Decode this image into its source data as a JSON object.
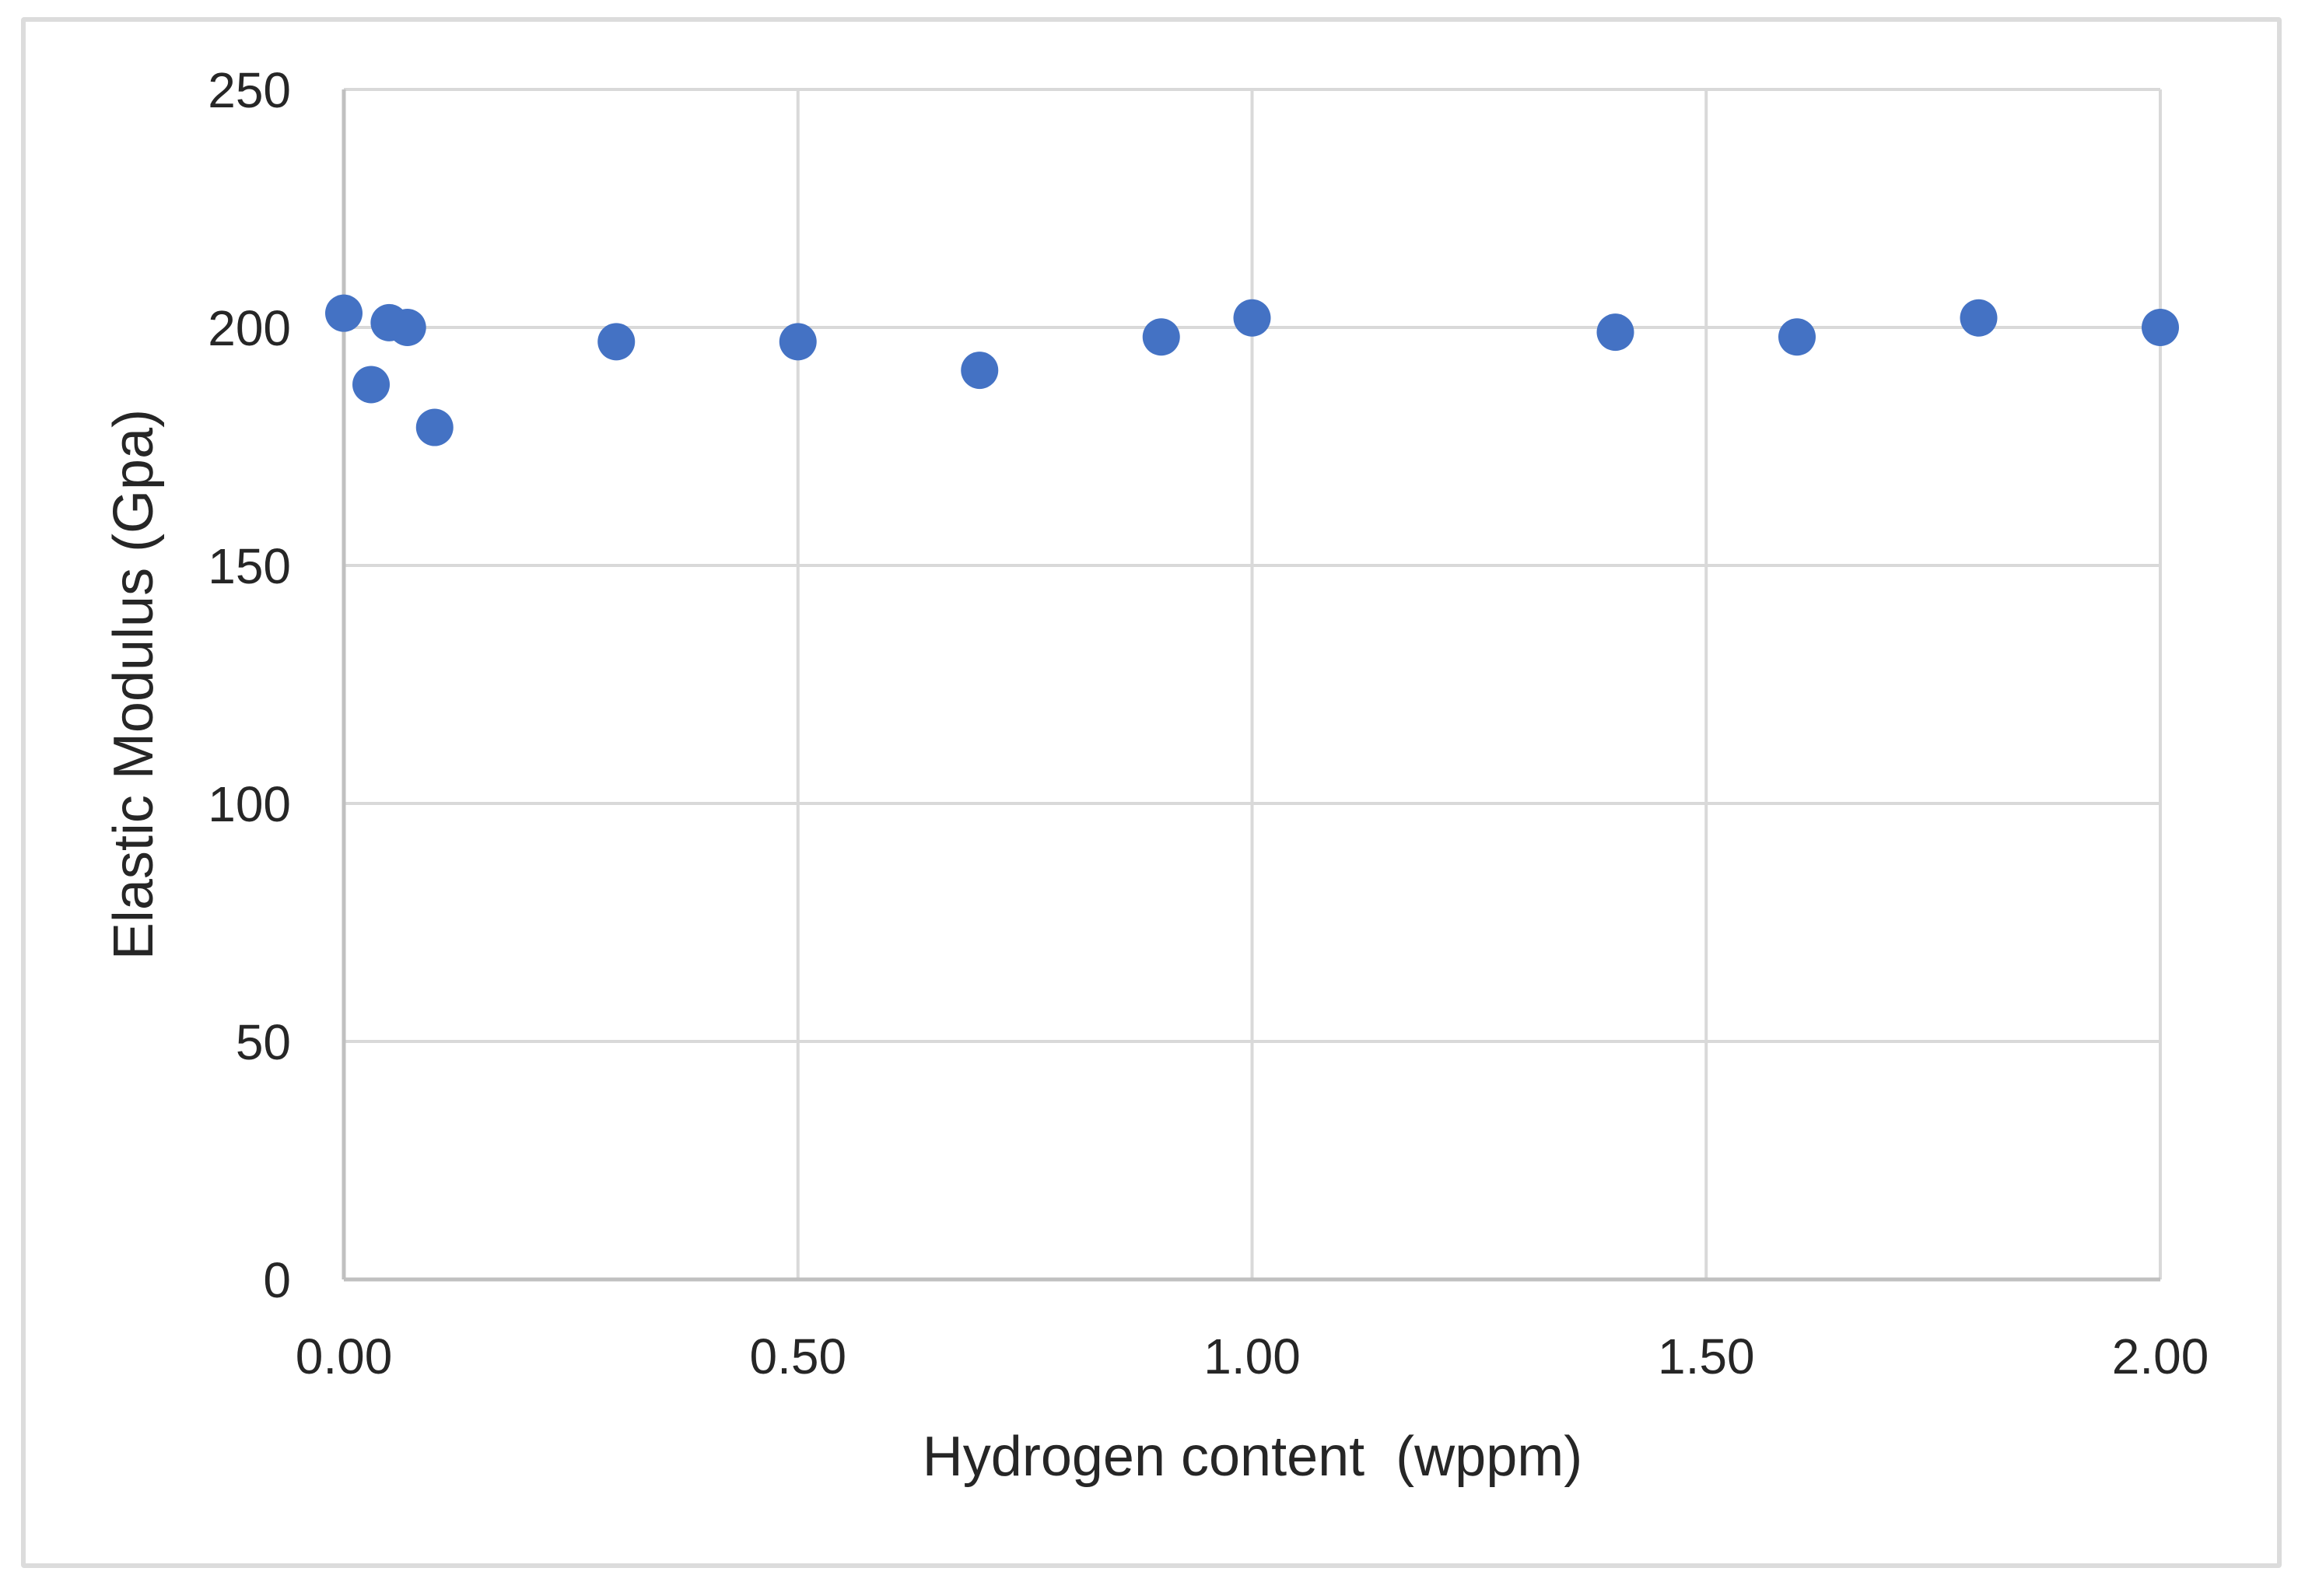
{
  "chart_data": {
    "type": "scatter",
    "xlabel": "Hydrogen content  (wppm)",
    "ylabel": "Elastic Modulus (Gpa)",
    "xlim": [
      0,
      2
    ],
    "ylim": [
      0,
      250
    ],
    "x_ticks": [
      0,
      0.5,
      1,
      1.5,
      2
    ],
    "x_tick_labels": [
      "0.00",
      "0.50",
      "1.00",
      "1.50",
      "2.00"
    ],
    "y_ticks": [
      0,
      50,
      100,
      150,
      200,
      250
    ],
    "y_tick_labels": [
      "0",
      "50",
      "100",
      "150",
      "200",
      "250"
    ],
    "grid": true,
    "legend": "none",
    "marker_color": "#4472c4",
    "gridline_color": "#d9d9d9",
    "axis_line_color": "#c0c0c0",
    "text_color": "#262626",
    "points": [
      {
        "x": 0.0,
        "y": 203
      },
      {
        "x": 0.03,
        "y": 188
      },
      {
        "x": 0.05,
        "y": 201
      },
      {
        "x": 0.07,
        "y": 200
      },
      {
        "x": 0.1,
        "y": 179
      },
      {
        "x": 0.3,
        "y": 197
      },
      {
        "x": 0.5,
        "y": 197
      },
      {
        "x": 0.7,
        "y": 191
      },
      {
        "x": 0.9,
        "y": 198
      },
      {
        "x": 1.0,
        "y": 202
      },
      {
        "x": 1.4,
        "y": 199
      },
      {
        "x": 1.6,
        "y": 198
      },
      {
        "x": 1.8,
        "y": 202
      },
      {
        "x": 2.0,
        "y": 200
      }
    ]
  }
}
